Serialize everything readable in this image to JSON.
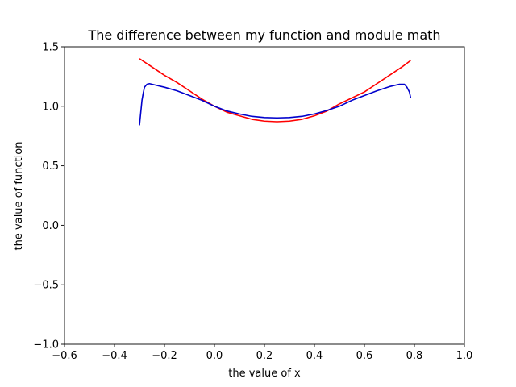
{
  "chart_data": {
    "type": "line",
    "title": "The difference between my function and module math",
    "xlabel": "the value of x",
    "ylabel": "the value of function",
    "xlim": [
      -0.6,
      1.0
    ],
    "ylim": [
      -1.0,
      1.5
    ],
    "xticks": [
      -0.6,
      -0.4,
      -0.2,
      0.0,
      0.2,
      0.4,
      0.6,
      0.8,
      1.0
    ],
    "xtick_labels": [
      "−0.6",
      "−0.4",
      "−0.2",
      "0.0",
      "0.2",
      "0.4",
      "0.6",
      "0.8",
      "1.0"
    ],
    "yticks": [
      -1.0,
      -0.5,
      0.0,
      0.5,
      1.0,
      1.5
    ],
    "ytick_labels": [
      "−1.0",
      "−0.5",
      "0.0",
      "0.5",
      "1.0",
      "1.5"
    ],
    "grid": false,
    "legend": false,
    "series": [
      {
        "color": "#ff0000",
        "x": [
          -0.3,
          -0.25,
          -0.2,
          -0.15,
          -0.1,
          -0.05,
          0.0,
          0.05,
          0.1,
          0.15,
          0.2,
          0.25,
          0.3,
          0.35,
          0.4,
          0.45,
          0.5,
          0.55,
          0.6,
          0.65,
          0.7,
          0.75,
          0.785
        ],
        "y": [
          1.4,
          1.33,
          1.26,
          1.2,
          1.13,
          1.06,
          1.0,
          0.95,
          0.92,
          0.89,
          0.875,
          0.87,
          0.875,
          0.89,
          0.92,
          0.96,
          1.02,
          1.07,
          1.12,
          1.19,
          1.26,
          1.33,
          1.385
        ]
      },
      {
        "color": "#0000cc",
        "x": [
          -0.3,
          -0.29,
          -0.285,
          -0.28,
          -0.27,
          -0.26,
          -0.25,
          -0.2,
          -0.15,
          -0.1,
          -0.05,
          0.0,
          0.05,
          0.1,
          0.15,
          0.2,
          0.25,
          0.3,
          0.35,
          0.4,
          0.45,
          0.5,
          0.55,
          0.6,
          0.65,
          0.7,
          0.74,
          0.76,
          0.77,
          0.78,
          0.785
        ],
        "y": [
          0.84,
          1.05,
          1.11,
          1.16,
          1.185,
          1.19,
          1.185,
          1.16,
          1.13,
          1.09,
          1.05,
          1.0,
          0.96,
          0.935,
          0.915,
          0.905,
          0.902,
          0.905,
          0.915,
          0.935,
          0.965,
          1.0,
          1.05,
          1.09,
          1.13,
          1.165,
          1.185,
          1.185,
          1.16,
          1.12,
          1.07
        ]
      }
    ]
  }
}
